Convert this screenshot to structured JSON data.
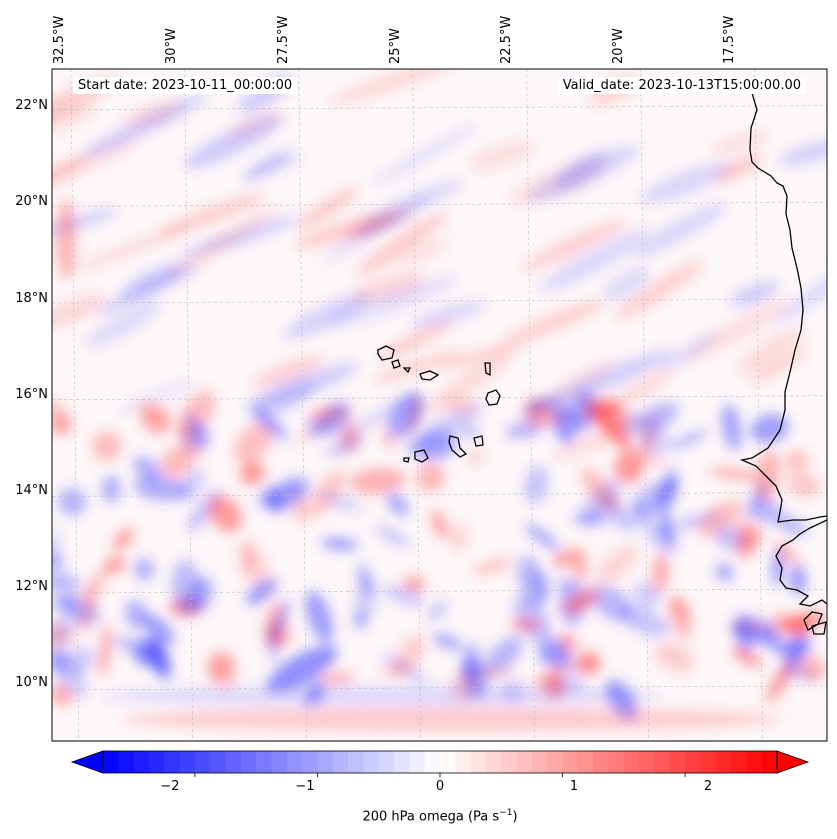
{
  "map": {
    "projection": "PlateCarree",
    "lon_range": [
      -33,
      -16
    ],
    "lat_range": [
      8.9,
      22.8
    ],
    "field": "200 hPa omega",
    "colormap": "bwr",
    "coastline_color": "#000000",
    "gridline_style": "dashed",
    "gridline_color": "#bbbbbb"
  },
  "header": {
    "start_date": "Start date: 2023-10-11_00:00:00",
    "valid_date": "Valid_date: 2023-10-13T15:00:00.00"
  },
  "lon_labels": [
    {
      "lon": -32.5,
      "text": "32.5°W"
    },
    {
      "lon": -30.0,
      "text": "30°W"
    },
    {
      "lon": -27.5,
      "text": "27.5°W"
    },
    {
      "lon": -25.0,
      "text": "25°W"
    },
    {
      "lon": -22.5,
      "text": "22.5°W"
    },
    {
      "lon": -20.0,
      "text": "20°W"
    },
    {
      "lon": -17.5,
      "text": "17.5°W"
    }
  ],
  "lat_labels": [
    {
      "lat": 10,
      "text": "10°N"
    },
    {
      "lat": 12,
      "text": "12°N"
    },
    {
      "lat": 14,
      "text": "14°N"
    },
    {
      "lat": 16,
      "text": "16°N"
    },
    {
      "lat": 18,
      "text": "18°N"
    },
    {
      "lat": 20,
      "text": "20°N"
    },
    {
      "lat": 22,
      "text": "22°N"
    }
  ],
  "colorbar": {
    "min": -2.75,
    "max": 2.75,
    "extend": "both",
    "ticks": [
      {
        "value": -2,
        "text": "−2"
      },
      {
        "value": -1,
        "text": "−1"
      },
      {
        "value": 0,
        "text": "0"
      },
      {
        "value": 1,
        "text": "1"
      },
      {
        "value": 2,
        "text": "2"
      }
    ],
    "label_main": "200 hPa omega (Pa s",
    "label_sup": "−1",
    "label_end": ")",
    "color_low": "#0000ff",
    "color_mid": "#ffffff",
    "color_high": "#ff0000"
  }
}
